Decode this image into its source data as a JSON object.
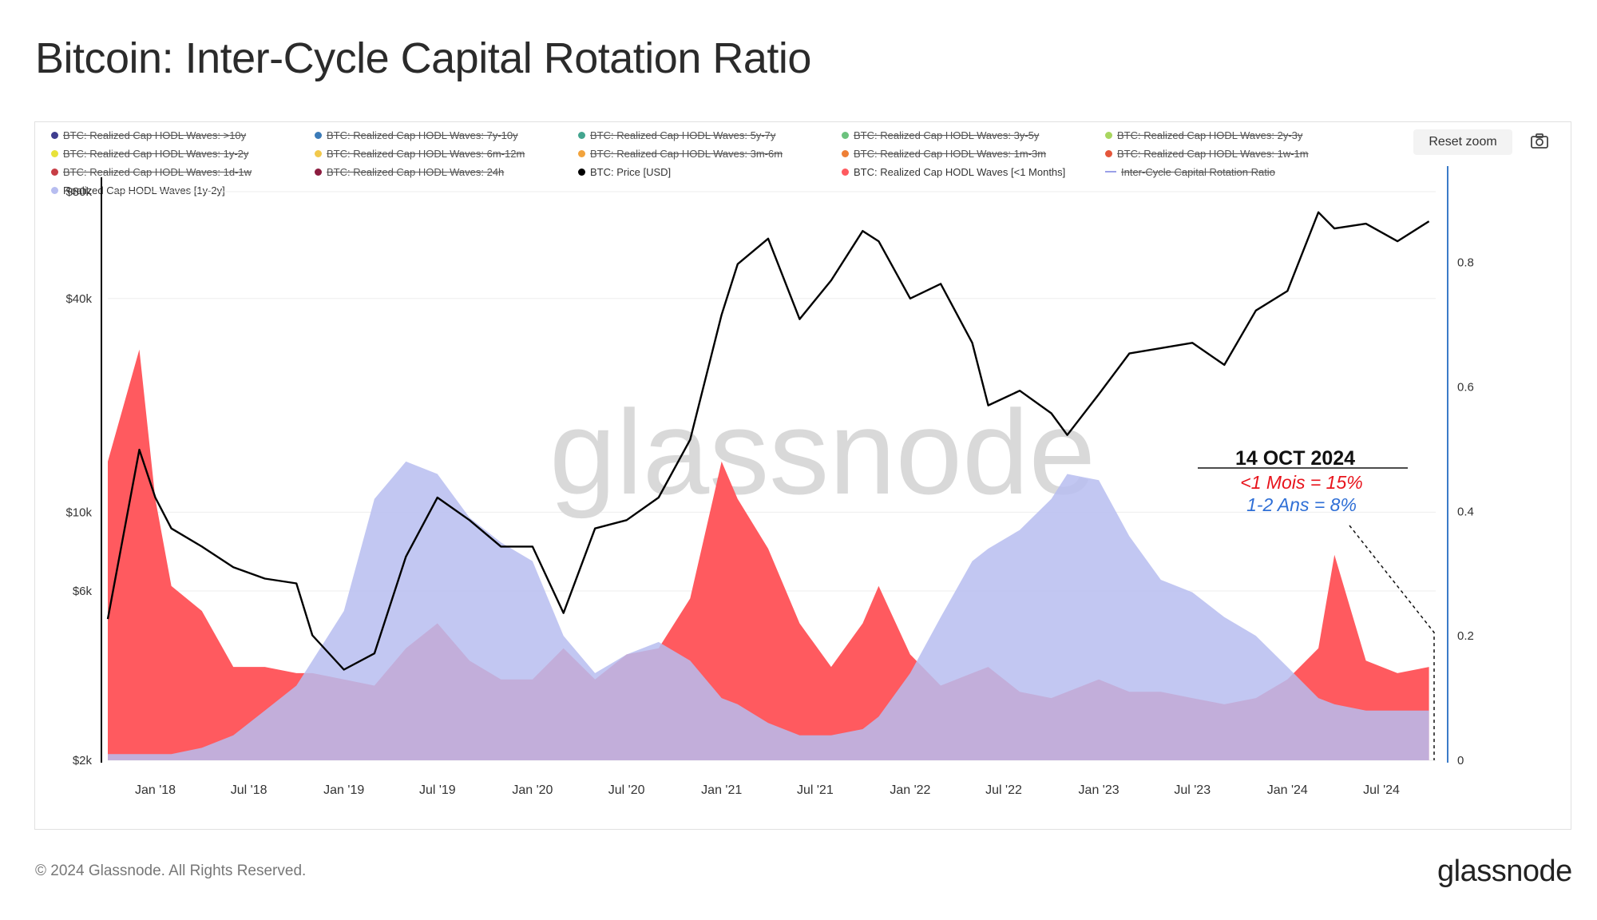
{
  "title": "Bitcoin: Inter-Cycle Capital Rotation Ratio",
  "toolbar": {
    "reset_zoom": "Reset zoom"
  },
  "legend": [
    {
      "label": "BTC: Realized Cap HODL Waves: >10y",
      "color": "#3f3d8f",
      "active": false
    },
    {
      "label": "BTC: Realized Cap HODL Waves: 7y-10y",
      "color": "#3b7bb8",
      "active": false
    },
    {
      "label": "BTC: Realized Cap HODL Waves: 5y-7y",
      "color": "#43a58f",
      "active": false
    },
    {
      "label": "BTC: Realized Cap HODL Waves: 3y-5y",
      "color": "#6cc27e",
      "active": false
    },
    {
      "label": "BTC: Realized Cap HODL Waves: 2y-3y",
      "color": "#a8d65f",
      "active": false
    },
    {
      "label": "BTC: Realized Cap HODL Waves: 1y-2y",
      "color": "#e8e23a",
      "active": false
    },
    {
      "label": "BTC: Realized Cap HODL Waves: 6m-12m",
      "color": "#f2c94c",
      "active": false
    },
    {
      "label": "BTC: Realized Cap HODL Waves: 3m-6m",
      "color": "#f2a33c",
      "active": false
    },
    {
      "label": "BTC: Realized Cap HODL Waves: 1m-3m",
      "color": "#ee7f36",
      "active": false
    },
    {
      "label": "BTC: Realized Cap HODL Waves: 1w-1m",
      "color": "#e4563b",
      "active": false
    },
    {
      "label": "BTC: Realized Cap HODL Waves: 1d-1w",
      "color": "#c73e46",
      "active": false
    },
    {
      "label": "BTC: Realized Cap HODL Waves: 24h",
      "color": "#8c1c3f",
      "active": false
    },
    {
      "label": "BTC: Price [USD]",
      "color": "#000000",
      "active": true
    },
    {
      "label": "BTC: Realized Cap HODL Waves [<1 Months]",
      "color": "#ff5a5f",
      "active": true
    },
    {
      "label": "Inter-Cycle Capital Rotation Ratio",
      "color": "#9aa0e8",
      "active": false,
      "line": true
    },
    {
      "label": "Realized Cap HODL Waves [1y-2y]",
      "color": "#b7bdf0",
      "active": true
    }
  ],
  "annotation": {
    "date": "14 OCT 2024",
    "line1": "<1 Mois  = 15%",
    "line2": "1-2 Ans = 8%",
    "color1": "#e8141c",
    "color2": "#2f6fd6"
  },
  "watermark": "glassnode",
  "footer": "© 2024 Glassnode. All Rights Reserved.",
  "brand": "glassnode",
  "chart_data": {
    "type": "area",
    "title": "Bitcoin: Inter-Cycle Capital Rotation Ratio",
    "x_tick_labels": [
      "Jan '18",
      "Jul '18",
      "Jan '19",
      "Jul '19",
      "Jan '20",
      "Jul '20",
      "Jan '21",
      "Jul '21",
      "Jan '22",
      "Jul '22",
      "Jan '23",
      "Jul '23",
      "Jan '24",
      "Jul '24"
    ],
    "x": [
      "2017-10",
      "2017-12",
      "2018-01",
      "2018-02",
      "2018-04",
      "2018-06",
      "2018-08",
      "2018-10",
      "2018-11",
      "2019-01",
      "2019-03",
      "2019-05",
      "2019-07",
      "2019-09",
      "2019-11",
      "2020-01",
      "2020-03",
      "2020-05",
      "2020-07",
      "2020-09",
      "2020-11",
      "2021-01",
      "2021-02",
      "2021-04",
      "2021-06",
      "2021-08",
      "2021-10",
      "2021-11",
      "2022-01",
      "2022-03",
      "2022-05",
      "2022-06",
      "2022-08",
      "2022-10",
      "2022-11",
      "2023-01",
      "2023-03",
      "2023-05",
      "2023-07",
      "2023-09",
      "2023-11",
      "2024-01",
      "2024-03",
      "2024-04",
      "2024-06",
      "2024-08",
      "2024-10"
    ],
    "left_axis": {
      "label": "",
      "scale": "log",
      "ticks": [
        "$2k",
        "$6k",
        "$10k",
        "$40k",
        "$80k"
      ],
      "tick_values": [
        2000,
        6000,
        10000,
        40000,
        80000
      ]
    },
    "right_axis": {
      "label": "",
      "scale": "linear",
      "ticks": [
        "0",
        "0.2",
        "0.4",
        "0.6",
        "0.8"
      ],
      "range": [
        0,
        0.92
      ]
    },
    "series": [
      {
        "name": "BTC: Price [USD]",
        "axis": "left",
        "color": "#000000",
        "values": [
          5000,
          15000,
          11000,
          9000,
          8000,
          7000,
          6500,
          6300,
          4500,
          3600,
          4000,
          7500,
          11000,
          9500,
          8000,
          8000,
          5200,
          9000,
          9500,
          11000,
          16000,
          36000,
          50000,
          59000,
          35000,
          45000,
          62000,
          58000,
          40000,
          44000,
          30000,
          20000,
          22000,
          19000,
          16500,
          21500,
          28000,
          29000,
          30000,
          26000,
          37000,
          42000,
          70000,
          63000,
          65000,
          58000,
          66000
        ]
      },
      {
        "name": "BTC: Realized Cap HODL Waves [<1 Months]",
        "axis": "right",
        "color": "#ff5a5f",
        "values": [
          0.48,
          0.66,
          0.42,
          0.28,
          0.24,
          0.15,
          0.15,
          0.14,
          0.14,
          0.13,
          0.12,
          0.18,
          0.22,
          0.16,
          0.13,
          0.13,
          0.18,
          0.13,
          0.17,
          0.18,
          0.26,
          0.48,
          0.42,
          0.34,
          0.22,
          0.15,
          0.22,
          0.28,
          0.17,
          0.12,
          0.14,
          0.15,
          0.11,
          0.1,
          0.11,
          0.13,
          0.11,
          0.11,
          0.1,
          0.09,
          0.1,
          0.13,
          0.18,
          0.33,
          0.16,
          0.14,
          0.15
        ]
      },
      {
        "name": "Realized Cap HODL Waves [1y-2y]",
        "axis": "right",
        "color": "#b7bdf0",
        "values": [
          0.01,
          0.01,
          0.01,
          0.01,
          0.02,
          0.04,
          0.08,
          0.12,
          0.16,
          0.24,
          0.42,
          0.48,
          0.46,
          0.39,
          0.35,
          0.32,
          0.2,
          0.14,
          0.17,
          0.19,
          0.16,
          0.1,
          0.09,
          0.06,
          0.04,
          0.04,
          0.05,
          0.07,
          0.14,
          0.23,
          0.32,
          0.34,
          0.37,
          0.42,
          0.46,
          0.45,
          0.36,
          0.29,
          0.27,
          0.23,
          0.2,
          0.15,
          0.1,
          0.09,
          0.08,
          0.08,
          0.08
        ]
      }
    ]
  }
}
